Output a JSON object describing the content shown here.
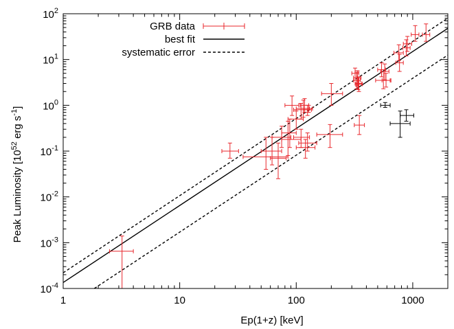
{
  "chart_data": {
    "type": "scatter",
    "xlabel": "Ep(1+z) [keV]",
    "ylabel": {
      "prefix": "Peak Luminosity [10",
      "exp1": "52",
      "mid": " erg s",
      "exp2": "-1",
      "suffix": "]"
    },
    "x_scale": "log",
    "y_scale": "log",
    "xlim": [
      1,
      2000
    ],
    "ylim": [
      0.0001,
      100
    ],
    "x_ticks": [
      {
        "value": 1,
        "label": "1"
      },
      {
        "value": 10,
        "label": "10"
      },
      {
        "value": 100,
        "label": "100"
      },
      {
        "value": 1000,
        "label": "1000"
      }
    ],
    "y_ticks": [
      {
        "value": 0.0001,
        "base": "10",
        "exp": "-4"
      },
      {
        "value": 0.001,
        "base": "10",
        "exp": "-3"
      },
      {
        "value": 0.01,
        "base": "10",
        "exp": "-2"
      },
      {
        "value": 0.1,
        "base": "10",
        "exp": "-1"
      },
      {
        "value": 1,
        "base": "10",
        "exp": "0"
      },
      {
        "value": 10,
        "base": "10",
        "exp": "1"
      },
      {
        "value": 100,
        "base": "10",
        "exp": "2"
      }
    ],
    "grid": false,
    "legend_position": "top-left",
    "legend": [
      {
        "label": "GRB data",
        "style": "errorbar",
        "color": "#e8262b"
      },
      {
        "label": "best fit",
        "style": "solid",
        "color": "#000000"
      },
      {
        "label": "systematic error",
        "style": "dashed",
        "color": "#000000"
      }
    ],
    "best_fit": [
      [
        1,
        0.000135
      ],
      [
        2000,
        48
      ]
    ],
    "systematic_upper": [
      [
        1,
        0.00022
      ],
      [
        2000,
        80
      ]
    ],
    "systematic_lower": [
      [
        1.85,
        0.0001
      ],
      [
        2000,
        12.5
      ]
    ],
    "series": [
      {
        "name": "GRB data",
        "color": "#e8262b",
        "points": [
          {
            "x": 3.2,
            "y": 0.00065,
            "xerr": [
              2.5,
              4.0
            ],
            "yerr": [
              0.0001,
              0.0014
            ]
          },
          {
            "x": 27,
            "y": 0.1,
            "xerr": [
              23,
              32
            ],
            "yerr": [
              0.07,
              0.15
            ]
          },
          {
            "x": 55,
            "y": 0.075,
            "xerr": [
              35,
              85
            ],
            "yerr": [
              0.04,
              0.2
            ]
          },
          {
            "x": 70,
            "y": 0.07,
            "xerr": [
              60,
              82
            ],
            "yerr": [
              0.025,
              0.15
            ]
          },
          {
            "x": 62,
            "y": 0.1,
            "xerr": [
              50,
              75
            ],
            "yerr": [
              0.05,
              0.2
            ]
          },
          {
            "x": 75,
            "y": 0.2,
            "xerr": [
              62,
              90
            ],
            "yerr": [
              0.12,
              0.35
            ]
          },
          {
            "x": 85,
            "y": 0.18,
            "xerr": [
              75,
              110
            ],
            "yerr": [
              0.08,
              0.45
            ]
          },
          {
            "x": 88,
            "y": 0.25,
            "xerr": [
              75,
              100
            ],
            "yerr": [
              0.12,
              0.5
            ]
          },
          {
            "x": 92,
            "y": 1.0,
            "xerr": [
              80,
              105
            ],
            "yerr": [
              0.6,
              1.6
            ]
          },
          {
            "x": 100,
            "y": 0.5,
            "xerr": [
              85,
              115
            ],
            "yerr": [
              0.3,
              0.75
            ]
          },
          {
            "x": 110,
            "y": 0.8,
            "xerr": [
              95,
              125
            ],
            "yerr": [
              0.5,
              1.1
            ]
          },
          {
            "x": 115,
            "y": 0.85,
            "xerr": [
              100,
              130
            ],
            "yerr": [
              0.55,
              1.3
            ]
          },
          {
            "x": 118,
            "y": 1.0,
            "xerr": [
              108,
              128
            ],
            "yerr": [
              0.7,
              1.4
            ]
          },
          {
            "x": 125,
            "y": 0.8,
            "xerr": [
              115,
              135
            ],
            "yerr": [
              0.6,
              1.0
            ]
          },
          {
            "x": 128,
            "y": 0.85,
            "xerr": [
              118,
              138
            ],
            "yerr": [
              0.7,
              1.0
            ]
          },
          {
            "x": 110,
            "y": 0.2,
            "xerr": [
              95,
              130
            ],
            "yerr": [
              0.12,
              0.3
            ]
          },
          {
            "x": 120,
            "y": 0.12,
            "xerr": [
              100,
              145
            ],
            "yerr": [
              0.07,
              0.18
            ]
          },
          {
            "x": 125,
            "y": 0.15,
            "xerr": [
              105,
              150
            ],
            "yerr": [
              0.1,
              0.25
            ]
          },
          {
            "x": 195,
            "y": 0.23,
            "xerr": [
              150,
              250
            ],
            "yerr": [
              0.12,
              0.38
            ]
          },
          {
            "x": 200,
            "y": 1.8,
            "xerr": [
              165,
              250
            ],
            "yerr": [
              1.0,
              3.0
            ]
          },
          {
            "x": 320,
            "y": 5.0,
            "xerr": [
              300,
              345
            ],
            "yerr": [
              3.5,
              6.5
            ]
          },
          {
            "x": 330,
            "y": 3.5,
            "xerr": [
              310,
              355
            ],
            "yerr": [
              2.3,
              5.3
            ]
          },
          {
            "x": 335,
            "y": 4.0,
            "xerr": [
              310,
              360
            ],
            "yerr": [
              2.6,
              5.7
            ]
          },
          {
            "x": 340,
            "y": 3.0,
            "xerr": [
              320,
              365
            ],
            "yerr": [
              2.2,
              4.2
            ]
          },
          {
            "x": 345,
            "y": 2.9,
            "xerr": [
              325,
              370
            ],
            "yerr": [
              2.0,
              4.0
            ]
          },
          {
            "x": 348,
            "y": 0.37,
            "xerr": [
              315,
              385
            ],
            "yerr": [
              0.23,
              0.6
            ]
          },
          {
            "x": 540,
            "y": 6.0,
            "xerr": [
              500,
              585
            ],
            "yerr": [
              4.2,
              8.5
            ]
          },
          {
            "x": 560,
            "y": 3.5,
            "xerr": [
              480,
              650
            ],
            "yerr": [
              2.3,
              5.5
            ]
          },
          {
            "x": 575,
            "y": 5.5,
            "xerr": [
              530,
              625
            ],
            "yerr": [
              3.6,
              8.0
            ]
          },
          {
            "x": 590,
            "y": 3.5,
            "xerr": [
              545,
              640
            ],
            "yerr": [
              2.5,
              5.0
            ]
          },
          {
            "x": 760,
            "y": 14.0,
            "xerr": [
              690,
              830
            ],
            "yerr": [
              9.5,
              21.0
            ]
          },
          {
            "x": 770,
            "y": 8.5,
            "xerr": [
              715,
              830
            ],
            "yerr": [
              5.5,
              13.0
            ]
          },
          {
            "x": 880,
            "y": 18.0,
            "xerr": [
              820,
              950
            ],
            "yerr": [
              12.0,
              27.0
            ]
          },
          {
            "x": 900,
            "y": 22.0,
            "xerr": [
              830,
              980
            ],
            "yerr": [
              15.0,
              32.0
            ]
          },
          {
            "x": 1050,
            "y": 35.0,
            "xerr": [
              970,
              1130
            ],
            "yerr": [
              25.0,
              55.0
            ]
          },
          {
            "x": 1300,
            "y": 35.0,
            "xerr": [
              1210,
              1400
            ],
            "yerr": [
              25.0,
              60.0
            ]
          }
        ]
      },
      {
        "name": "",
        "color": "#000000",
        "points": [
          {
            "x": 580,
            "y": 1.0,
            "xerr": [
              530,
              640
            ],
            "yerr": [
              0.9,
              1.15
            ]
          },
          {
            "x": 780,
            "y": 0.4,
            "xerr": [
              640,
              950
            ],
            "yerr": [
              0.2,
              0.75
            ]
          },
          {
            "x": 880,
            "y": 0.6,
            "xerr": [
              780,
              1020
            ],
            "yerr": [
              0.45,
              0.8
            ]
          }
        ]
      }
    ]
  }
}
